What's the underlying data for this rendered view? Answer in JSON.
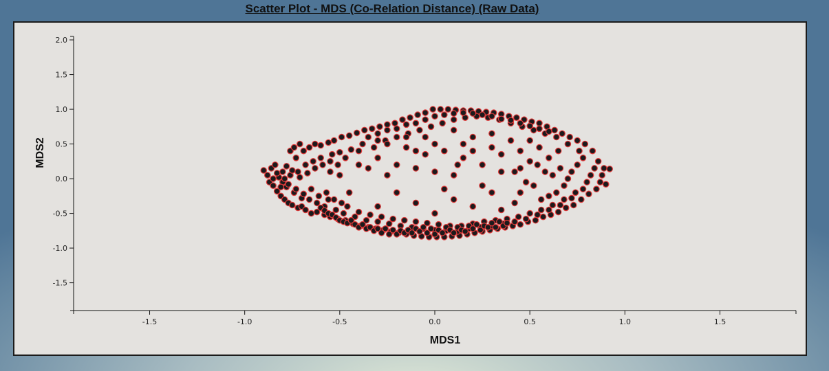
{
  "chart_data": {
    "type": "scatter",
    "title": "Scatter Plot - MDS (Co-Relation Distance) (Raw Data)",
    "xlabel": "MDS1",
    "ylabel": "MDS2",
    "xlim": [
      -1.9,
      1.9
    ],
    "ylim": [
      -1.9,
      2.05
    ],
    "xticks": [
      "-1.5",
      "-1.0",
      "-0.5",
      "0.0",
      "0.5",
      "1.0",
      "1.5"
    ],
    "yticks": [
      "2.0",
      "1.5",
      "1.0",
      "0.5",
      "0.0",
      "-0.5",
      "-1.0",
      "-1.5"
    ],
    "grid": false,
    "marker_fill": "#1c1a1c",
    "marker_stroke": "#e03a3a",
    "points": [
      [
        -0.9,
        0.12
      ],
      [
        -0.88,
        0.05
      ],
      [
        -0.87,
        -0.05
      ],
      [
        -0.86,
        0.15
      ],
      [
        -0.85,
        -0.1
      ],
      [
        -0.84,
        0.2
      ],
      [
        -0.83,
        -0.18
      ],
      [
        -0.82,
        0.02
      ],
      [
        -0.81,
        -0.25
      ],
      [
        -0.8,
        0.1
      ],
      [
        -0.79,
        -0.3
      ],
      [
        -0.78,
        0.18
      ],
      [
        -0.77,
        -0.35
      ],
      [
        -0.76,
        0.4
      ],
      [
        -0.75,
        -0.38
      ],
      [
        -0.74,
        0.45
      ],
      [
        -0.73,
        0.3
      ],
      [
        -0.72,
        -0.42
      ],
      [
        -0.71,
        0.5
      ],
      [
        -0.7,
        -0.4
      ],
      [
        -0.69,
        0.4
      ],
      [
        -0.68,
        -0.45
      ],
      [
        -0.66,
        0.45
      ],
      [
        -0.65,
        -0.5
      ],
      [
        -0.63,
        0.5
      ],
      [
        -0.62,
        -0.48
      ],
      [
        -0.6,
        0.48
      ],
      [
        -0.58,
        -0.52
      ],
      [
        -0.56,
        0.52
      ],
      [
        -0.55,
        -0.55
      ],
      [
        -0.53,
        0.55
      ],
      [
        -0.51,
        -0.58
      ],
      [
        -0.49,
        0.6
      ],
      [
        -0.47,
        -0.6
      ],
      [
        -0.45,
        0.62
      ],
      [
        -0.43,
        -0.65
      ],
      [
        -0.41,
        0.66
      ],
      [
        -0.39,
        -0.68
      ],
      [
        -0.37,
        0.7
      ],
      [
        -0.35,
        -0.7
      ],
      [
        -0.33,
        0.72
      ],
      [
        -0.31,
        -0.72
      ],
      [
        -0.29,
        0.75
      ],
      [
        -0.27,
        -0.74
      ],
      [
        -0.25,
        0.78
      ],
      [
        -0.23,
        -0.76
      ],
      [
        -0.21,
        0.8
      ],
      [
        -0.19,
        -0.78
      ],
      [
        -0.17,
        0.85
      ],
      [
        -0.15,
        -0.8
      ],
      [
        -0.13,
        0.88
      ],
      [
        -0.11,
        -0.82
      ],
      [
        -0.09,
        0.92
      ],
      [
        -0.07,
        -0.83
      ],
      [
        -0.05,
        0.95
      ],
      [
        -0.03,
        -0.84
      ],
      [
        -0.01,
        1.0
      ],
      [
        0.01,
        -0.84
      ],
      [
        0.03,
        1.0
      ],
      [
        0.05,
        -0.84
      ],
      [
        0.07,
        1.0
      ],
      [
        0.09,
        -0.83
      ],
      [
        0.11,
        0.99
      ],
      [
        0.13,
        -0.82
      ],
      [
        0.15,
        0.98
      ],
      [
        0.17,
        -0.8
      ],
      [
        0.19,
        0.98
      ],
      [
        0.21,
        -0.78
      ],
      [
        0.23,
        0.97
      ],
      [
        0.25,
        -0.76
      ],
      [
        0.27,
        0.96
      ],
      [
        0.29,
        -0.74
      ],
      [
        0.31,
        0.95
      ],
      [
        0.33,
        -0.72
      ],
      [
        0.35,
        0.93
      ],
      [
        0.37,
        -0.7
      ],
      [
        0.39,
        0.9
      ],
      [
        0.41,
        -0.68
      ],
      [
        0.43,
        0.88
      ],
      [
        0.45,
        -0.66
      ],
      [
        0.47,
        0.85
      ],
      [
        0.49,
        -0.62
      ],
      [
        0.51,
        0.82
      ],
      [
        0.53,
        -0.6
      ],
      [
        0.55,
        0.8
      ],
      [
        0.57,
        -0.55
      ],
      [
        0.59,
        0.75
      ],
      [
        0.61,
        -0.52
      ],
      [
        0.63,
        0.7
      ],
      [
        0.65,
        -0.48
      ],
      [
        0.67,
        0.65
      ],
      [
        0.69,
        -0.42
      ],
      [
        0.71,
        0.6
      ],
      [
        0.73,
        -0.38
      ],
      [
        0.75,
        0.55
      ],
      [
        0.77,
        -0.3
      ],
      [
        0.79,
        0.5
      ],
      [
        0.81,
        -0.22
      ],
      [
        0.83,
        0.4
      ],
      [
        0.85,
        -0.15
      ],
      [
        0.86,
        0.25
      ],
      [
        0.87,
        -0.05
      ],
      [
        0.88,
        0.05
      ],
      [
        0.89,
        0.15
      ],
      [
        0.9,
        -0.08
      ],
      [
        0.92,
        0.14
      ],
      [
        -0.8,
        -0.05
      ],
      [
        -0.78,
        -0.12
      ],
      [
        -0.76,
        0.05
      ],
      [
        -0.74,
        -0.2
      ],
      [
        -0.72,
        0.1
      ],
      [
        -0.7,
        -0.28
      ],
      [
        -0.68,
        0.2
      ],
      [
        -0.66,
        -0.3
      ],
      [
        -0.64,
        0.25
      ],
      [
        -0.62,
        -0.35
      ],
      [
        -0.6,
        0.3
      ],
      [
        -0.58,
        -0.4
      ],
      [
        -0.56,
        -0.3
      ],
      [
        -0.54,
        0.35
      ],
      [
        -0.52,
        -0.45
      ],
      [
        -0.5,
        0.38
      ],
      [
        -0.48,
        -0.5
      ],
      [
        -0.46,
        -0.4
      ],
      [
        -0.44,
        0.42
      ],
      [
        -0.42,
        -0.55
      ],
      [
        -0.4,
        -0.48
      ],
      [
        -0.38,
        0.5
      ],
      [
        -0.36,
        -0.6
      ],
      [
        -0.34,
        -0.52
      ],
      [
        -0.32,
        0.45
      ],
      [
        -0.3,
        -0.62
      ],
      [
        -0.28,
        -0.55
      ],
      [
        -0.26,
        0.55
      ],
      [
        -0.24,
        -0.65
      ],
      [
        -0.22,
        -0.58
      ],
      [
        -0.2,
        0.6
      ],
      [
        -0.18,
        -0.68
      ],
      [
        -0.16,
        -0.6
      ],
      [
        -0.14,
        0.65
      ],
      [
        -0.12,
        -0.7
      ],
      [
        -0.1,
        -0.62
      ],
      [
        -0.08,
        0.7
      ],
      [
        -0.06,
        -0.72
      ],
      [
        -0.04,
        -0.64
      ],
      [
        -0.02,
        0.75
      ],
      [
        0.0,
        -0.74
      ],
      [
        0.02,
        -0.66
      ],
      [
        0.04,
        0.8
      ],
      [
        0.06,
        -0.75
      ],
      [
        0.08,
        -0.68
      ],
      [
        0.1,
        0.85
      ],
      [
        0.12,
        -0.76
      ],
      [
        0.14,
        -0.68
      ],
      [
        0.16,
        0.88
      ],
      [
        0.18,
        -0.72
      ],
      [
        0.2,
        -0.65
      ],
      [
        0.22,
        0.9
      ],
      [
        0.24,
        -0.7
      ],
      [
        0.26,
        -0.62
      ],
      [
        0.28,
        0.88
      ],
      [
        0.3,
        -0.68
      ],
      [
        0.32,
        -0.6
      ],
      [
        0.34,
        0.85
      ],
      [
        0.36,
        -0.65
      ],
      [
        0.38,
        -0.58
      ],
      [
        0.4,
        0.8
      ],
      [
        0.42,
        -0.62
      ],
      [
        0.44,
        -0.55
      ],
      [
        0.46,
        0.75
      ],
      [
        0.48,
        -0.58
      ],
      [
        0.5,
        -0.5
      ],
      [
        0.52,
        0.7
      ],
      [
        0.54,
        -0.52
      ],
      [
        0.56,
        -0.45
      ],
      [
        0.58,
        0.65
      ],
      [
        0.6,
        -0.45
      ],
      [
        0.62,
        -0.38
      ],
      [
        0.64,
        0.6
      ],
      [
        0.66,
        -0.38
      ],
      [
        0.68,
        -0.3
      ],
      [
        0.7,
        0.5
      ],
      [
        0.72,
        -0.28
      ],
      [
        0.74,
        -0.2
      ],
      [
        0.76,
        0.4
      ],
      [
        0.78,
        -0.15
      ],
      [
        0.8,
        -0.05
      ],
      [
        0.82,
        0.05
      ],
      [
        0.84,
        0.15
      ],
      [
        0.78,
        0.3
      ],
      [
        0.75,
        0.2
      ],
      [
        0.72,
        0.1
      ],
      [
        0.7,
        0.0
      ],
      [
        0.68,
        -0.1
      ],
      [
        0.66,
        0.15
      ],
      [
        0.64,
        -0.2
      ],
      [
        0.62,
        0.05
      ],
      [
        0.6,
        -0.25
      ],
      [
        0.58,
        0.1
      ],
      [
        0.56,
        -0.3
      ],
      [
        0.54,
        0.2
      ],
      [
        0.52,
        -0.1
      ],
      [
        0.5,
        0.25
      ],
      [
        0.48,
        -0.05
      ],
      [
        0.45,
        0.4
      ],
      [
        0.42,
        0.1
      ],
      [
        -0.85,
        0.0
      ],
      [
        -0.83,
        0.08
      ],
      [
        -0.81,
        -0.12
      ],
      [
        -0.79,
        0.0
      ],
      [
        -0.77,
        -0.08
      ],
      [
        -0.75,
        0.12
      ],
      [
        -0.73,
        -0.15
      ],
      [
        -0.71,
        0.02
      ],
      [
        -0.69,
        -0.22
      ],
      [
        -0.67,
        0.08
      ],
      [
        -0.65,
        -0.15
      ],
      [
        -0.63,
        0.15
      ],
      [
        -0.61,
        -0.25
      ],
      [
        -0.59,
        0.2
      ],
      [
        -0.57,
        -0.2
      ],
      [
        -0.55,
        0.25
      ],
      [
        -0.53,
        -0.3
      ],
      [
        -0.51,
        0.2
      ],
      [
        -0.49,
        -0.35
      ],
      [
        -0.47,
        0.3
      ],
      [
        -0.6,
        -0.42
      ],
      [
        -0.58,
        -0.46
      ],
      [
        -0.56,
        -0.5
      ],
      [
        -0.54,
        -0.52
      ],
      [
        -0.52,
        -0.56
      ],
      [
        -0.5,
        -0.6
      ],
      [
        -0.48,
        -0.62
      ],
      [
        -0.46,
        -0.64
      ],
      [
        -0.44,
        -0.6
      ],
      [
        -0.42,
        -0.66
      ],
      [
        -0.4,
        -0.7
      ],
      [
        -0.38,
        -0.66
      ],
      [
        -0.36,
        -0.72
      ],
      [
        -0.34,
        -0.7
      ],
      [
        -0.32,
        -0.75
      ],
      [
        -0.3,
        -0.72
      ],
      [
        -0.28,
        -0.78
      ],
      [
        -0.26,
        -0.72
      ],
      [
        -0.24,
        -0.8
      ],
      [
        -0.22,
        -0.74
      ],
      [
        -0.2,
        -0.8
      ],
      [
        -0.18,
        -0.75
      ],
      [
        -0.16,
        -0.78
      ],
      [
        -0.14,
        -0.74
      ],
      [
        -0.12,
        -0.78
      ],
      [
        -0.1,
        -0.72
      ],
      [
        -0.08,
        -0.76
      ],
      [
        -0.06,
        -0.7
      ],
      [
        -0.04,
        -0.78
      ],
      [
        -0.02,
        -0.72
      ],
      [
        0.0,
        -0.8
      ],
      [
        0.02,
        -0.74
      ],
      [
        0.04,
        -0.78
      ],
      [
        0.06,
        -0.7
      ],
      [
        0.08,
        -0.74
      ],
      [
        0.1,
        -0.78
      ],
      [
        0.12,
        -0.7
      ],
      [
        0.14,
        -0.74
      ],
      [
        0.16,
        -0.76
      ],
      [
        0.18,
        -0.68
      ],
      [
        0.2,
        -0.72
      ],
      [
        0.22,
        -0.66
      ],
      [
        0.24,
        -0.74
      ],
      [
        0.26,
        -0.68
      ],
      [
        0.28,
        -0.7
      ],
      [
        0.3,
        -0.64
      ],
      [
        0.32,
        -0.7
      ],
      [
        0.34,
        -0.62
      ],
      [
        0.36,
        -0.68
      ],
      [
        0.38,
        -0.64
      ],
      [
        -0.35,
        0.6
      ],
      [
        -0.3,
        0.65
      ],
      [
        -0.25,
        0.7
      ],
      [
        -0.2,
        0.72
      ],
      [
        -0.15,
        0.78
      ],
      [
        -0.1,
        0.8
      ],
      [
        -0.05,
        0.85
      ],
      [
        0.0,
        0.9
      ],
      [
        0.05,
        0.92
      ],
      [
        0.1,
        0.94
      ],
      [
        0.15,
        0.95
      ],
      [
        0.2,
        0.94
      ],
      [
        0.25,
        0.92
      ],
      [
        0.3,
        0.9
      ],
      [
        0.35,
        0.86
      ],
      [
        0.4,
        0.84
      ],
      [
        0.45,
        0.8
      ],
      [
        0.5,
        0.76
      ],
      [
        0.55,
        0.72
      ],
      [
        0.6,
        0.68
      ],
      [
        -0.4,
        0.4
      ],
      [
        -0.3,
        0.3
      ],
      [
        -0.25,
        0.5
      ],
      [
        -0.2,
        0.2
      ],
      [
        -0.15,
        0.45
      ],
      [
        -0.1,
        0.15
      ],
      [
        -0.05,
        0.35
      ],
      [
        0.0,
        0.1
      ],
      [
        0.05,
        0.4
      ],
      [
        0.1,
        0.05
      ],
      [
        0.15,
        0.3
      ],
      [
        0.2,
        0.6
      ],
      [
        0.25,
        0.2
      ],
      [
        0.3,
        0.45
      ],
      [
        0.35,
        0.1
      ],
      [
        0.4,
        0.55
      ],
      [
        0.3,
        -0.2
      ],
      [
        0.2,
        -0.4
      ],
      [
        0.1,
        -0.3
      ],
      [
        0.0,
        -0.5
      ],
      [
        -0.1,
        -0.35
      ],
      [
        -0.2,
        -0.2
      ],
      [
        -0.3,
        -0.4
      ],
      [
        0.45,
        -0.2
      ],
      [
        0.35,
        -0.45
      ],
      [
        0.25,
        -0.1
      ],
      [
        0.15,
        0.5
      ],
      [
        -0.05,
        0.6
      ],
      [
        -0.25,
        0.05
      ],
      [
        0.05,
        -0.15
      ],
      [
        -0.35,
        0.15
      ],
      [
        0.42,
        -0.35
      ],
      [
        0.55,
        0.45
      ],
      [
        0.6,
        0.3
      ],
      [
        0.65,
        0.4
      ],
      [
        -0.5,
        0.05
      ],
      [
        -0.45,
        -0.2
      ],
      [
        -0.55,
        0.1
      ],
      [
        0.1,
        0.7
      ],
      [
        -0.15,
        0.6
      ],
      [
        0.0,
        0.5
      ],
      [
        0.2,
        0.4
      ],
      [
        -0.1,
        0.4
      ],
      [
        0.3,
        0.65
      ],
      [
        0.35,
        0.35
      ],
      [
        0.5,
        0.55
      ],
      [
        0.45,
        0.15
      ],
      [
        -0.4,
        0.2
      ],
      [
        -0.3,
        0.55
      ],
      [
        0.12,
        0.2
      ]
    ]
  }
}
